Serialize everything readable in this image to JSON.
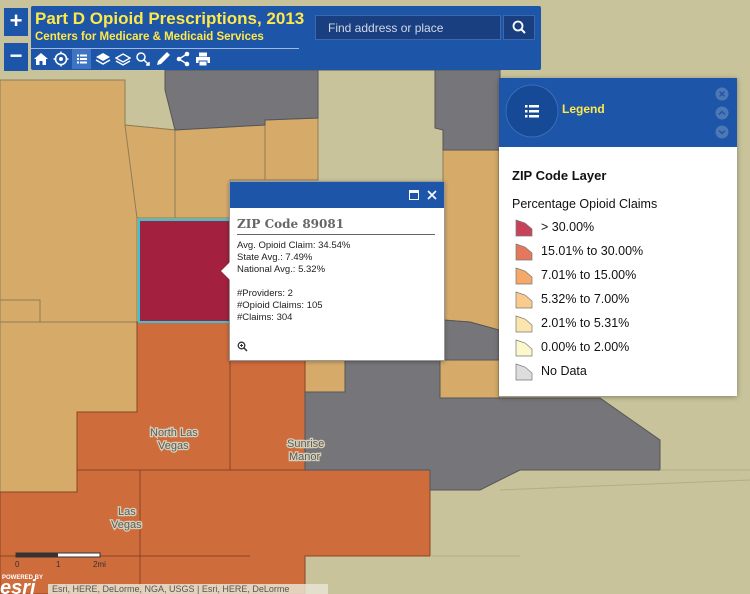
{
  "app": {
    "title": "Part D Opioid Prescriptions, 2013",
    "subtitle": "Centers for Medicare & Medicaid Services"
  },
  "zoom": {
    "in": "+",
    "out": "−"
  },
  "search": {
    "placeholder": "Find address or place"
  },
  "toolbar": [
    "home-icon",
    "locate-icon",
    "list-icon",
    "layers-icon",
    "basemap-icon",
    "bookmark-icon",
    "measure-icon",
    "share-icon",
    "print-icon"
  ],
  "popup": {
    "title": "ZIP Code 89081",
    "lines": [
      "Avg. Opioid Claim: 34.54%",
      "State Avg.: 7.49%",
      "National Avg.: 5.32%",
      "#Providers: 2",
      "#Opioid Claims: 105",
      "#Claims: 304"
    ]
  },
  "legend": {
    "header": "Legend",
    "layer": "ZIP Code Layer",
    "field": "Percentage Opioid Claims",
    "items": [
      {
        "label": "> 30.00%",
        "color": "#c5445b"
      },
      {
        "label": "15.01% to 30.00%",
        "color": "#e4785c"
      },
      {
        "label": "7.01% to 15.00%",
        "color": "#f4a86a"
      },
      {
        "label": "5.32% to 7.00%",
        "color": "#f9cb8d"
      },
      {
        "label": "2.01% to 5.31%",
        "color": "#fbe5ac"
      },
      {
        "label": "0.00% to 2.00%",
        "color": "#fdf7cc"
      },
      {
        "label": "No Data",
        "color": "#dddddd"
      }
    ]
  },
  "map": {
    "places": [
      "North Las Vegas",
      "Sunrise Manor",
      "Las Vegas"
    ],
    "scale": [
      "0",
      "1",
      "2mi"
    ],
    "attribution": "Esri, HERE, DeLorme, NGA, USGS | Esri, HERE, DeLorme",
    "powered_by": "POWERED BY",
    "esri": "esri",
    "colors": {
      "high": "#a3213f",
      "orange": "#cf6c3c",
      "tan": "#d6ab6a",
      "light": "#c9c39b",
      "nodata": "#76767a",
      "highlight": "#36c5d6"
    }
  }
}
